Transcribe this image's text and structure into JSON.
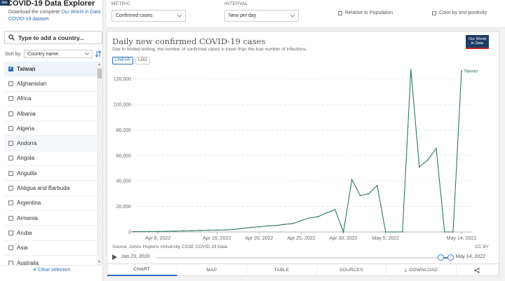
{
  "brand_tag": "data",
  "explorer": {
    "title": "COVID-19 Data Explorer",
    "desc_before": "Download the complete ",
    "desc_link_em": "Our World in Data",
    "desc_link_after": " COVID-19 dataset",
    "desc_after": "."
  },
  "search": {
    "placeholder": "Type to add a country..."
  },
  "sort": {
    "label": "Sort by",
    "value": "Country name"
  },
  "countries": [
    {
      "name": "Taiwan",
      "checked": true
    },
    {
      "name": "Afghanistan",
      "checked": false
    },
    {
      "name": "Africa",
      "checked": false
    },
    {
      "name": "Albania",
      "checked": false
    },
    {
      "name": "Algeria",
      "checked": false
    },
    {
      "name": "Andorra",
      "checked": false
    },
    {
      "name": "Angola",
      "checked": false
    },
    {
      "name": "Anguilla",
      "checked": false
    },
    {
      "name": "Antigua and Barbuda",
      "checked": false
    },
    {
      "name": "Argentina",
      "checked": false
    },
    {
      "name": "Armenia",
      "checked": false
    },
    {
      "name": "Aruba",
      "checked": false
    },
    {
      "name": "Asia",
      "checked": false
    },
    {
      "name": "Australia",
      "checked": false
    }
  ],
  "clear_selection": "✕ Clear selection",
  "controls": {
    "metric_label": "METRIC",
    "metric_value": "Confirmed cases",
    "interval_label": "INTERVAL",
    "interval_value": "New per day",
    "relative_label": "Relative to Population",
    "color_label": "Color by test positivity"
  },
  "chart": {
    "title": "Daily new confirmed COVID-19 cases",
    "subtitle": "Due to limited testing, the number of confirmed cases is lower than the true number of infections.",
    "logo_line1": "Our World",
    "logo_line2": "in Data",
    "scale_linear": "LINEAR",
    "scale_log": "LOG",
    "source": "Source: Johns Hopkins University CSSE COVID-19 Data",
    "license": "CC BY",
    "timeline_start": "Jan 23, 2020",
    "timeline_end": "May 14, 2022",
    "line_color": "#2b7a60"
  },
  "tabs": [
    "CHART",
    "MAP",
    "TABLE",
    "SOURCES",
    "DOWNLOAD"
  ],
  "chart_data": {
    "type": "line",
    "title": "Daily new confirmed COVID-19 cases",
    "series": [
      {
        "name": "Taiwan",
        "x": [
          "2022-04-05",
          "2022-04-06",
          "2022-04-07",
          "2022-04-08",
          "2022-04-09",
          "2022-04-10",
          "2022-04-11",
          "2022-04-12",
          "2022-04-13",
          "2022-04-14",
          "2022-04-15",
          "2022-04-16",
          "2022-04-17",
          "2022-04-18",
          "2022-04-19",
          "2022-04-20",
          "2022-04-21",
          "2022-04-22",
          "2022-04-23",
          "2022-04-24",
          "2022-04-25",
          "2022-04-26",
          "2022-04-27",
          "2022-04-28",
          "2022-04-29",
          "2022-04-30",
          "2022-05-01",
          "2022-05-02",
          "2022-05-03",
          "2022-05-04",
          "2022-05-05",
          "2022-05-06",
          "2022-05-07",
          "2022-05-08",
          "2022-05-09",
          "2022-05-10",
          "2022-05-11",
          "2022-05-12",
          "2022-05-13",
          "2022-05-14"
        ],
        "values": [
          200,
          250,
          300,
          350,
          500,
          600,
          800,
          1000,
          1200,
          1400,
          1500,
          1600,
          2000,
          2800,
          3500,
          4000,
          4800,
          5000,
          6000,
          6500,
          9000,
          11000,
          12000,
          15000,
          17500,
          0,
          41000,
          28500,
          30000,
          36500,
          0,
          0,
          0,
          127000,
          51000,
          56500,
          65500,
          0,
          0,
          126500
        ]
      }
    ],
    "x_ticks": [
      "Apr 8, 2022",
      "Apr 15, 2022",
      "Apr 20, 2022",
      "Apr 25, 2022",
      "Apr 30, 2022",
      "May 5, 2022",
      "May 14, 2022"
    ],
    "x_tick_dates": [
      "2022-04-08",
      "2022-04-15",
      "2022-04-20",
      "2022-04-25",
      "2022-04-30",
      "2022-05-05",
      "2022-05-14"
    ],
    "y_ticks": [
      0,
      20000,
      40000,
      60000,
      80000,
      100000,
      120000
    ],
    "y_tick_labels": [
      "0",
      "20,000",
      "40,000",
      "60,000",
      "80,000",
      "100,000",
      "120,000"
    ],
    "ylim": [
      0,
      128000
    ],
    "grid": "horizontal dashed",
    "scale": "linear"
  }
}
